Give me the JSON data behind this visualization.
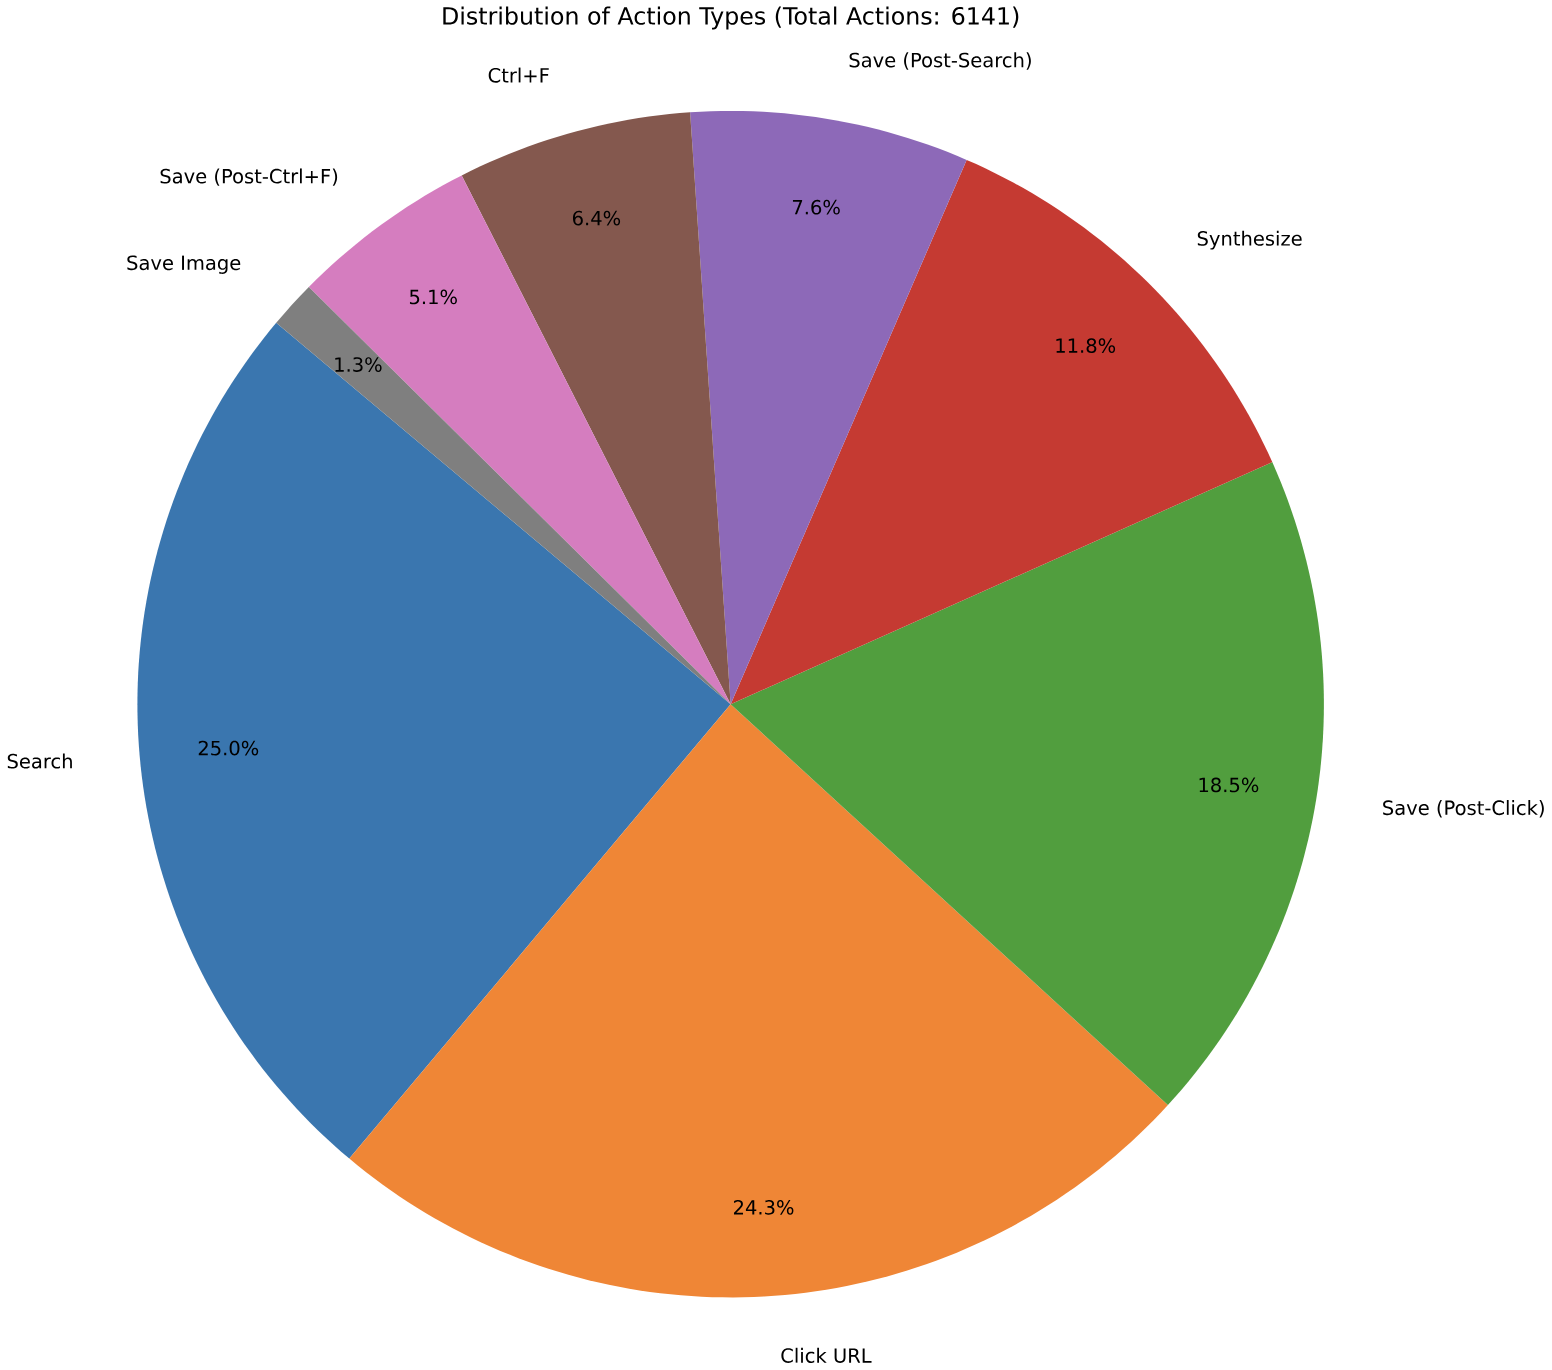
{
  "chart_data": {
    "type": "pie",
    "title": "Distribution of Action Types (Total Actions: 6141)",
    "categories": [
      "Search",
      "Click URL",
      "Save (Post-Click)",
      "Synthesize",
      "Save (Post-Search)",
      "Ctrl+F",
      "Save (Post-Ctrl+F)",
      "Save Image"
    ],
    "values": [
      25.0,
      24.3,
      18.5,
      11.8,
      7.6,
      6.4,
      5.1,
      1.3
    ],
    "value_labels": [
      "25.0%",
      "24.3%",
      "18.5%",
      "11.8%",
      "7.6%",
      "6.4%",
      "5.1%",
      "1.3%"
    ],
    "colors": [
      "#3a76af",
      "#ef8636",
      "#519e3e",
      "#c53a32",
      "#8d69b8",
      "#84584e",
      "#d57dbf",
      "#7f7f7f"
    ]
  }
}
